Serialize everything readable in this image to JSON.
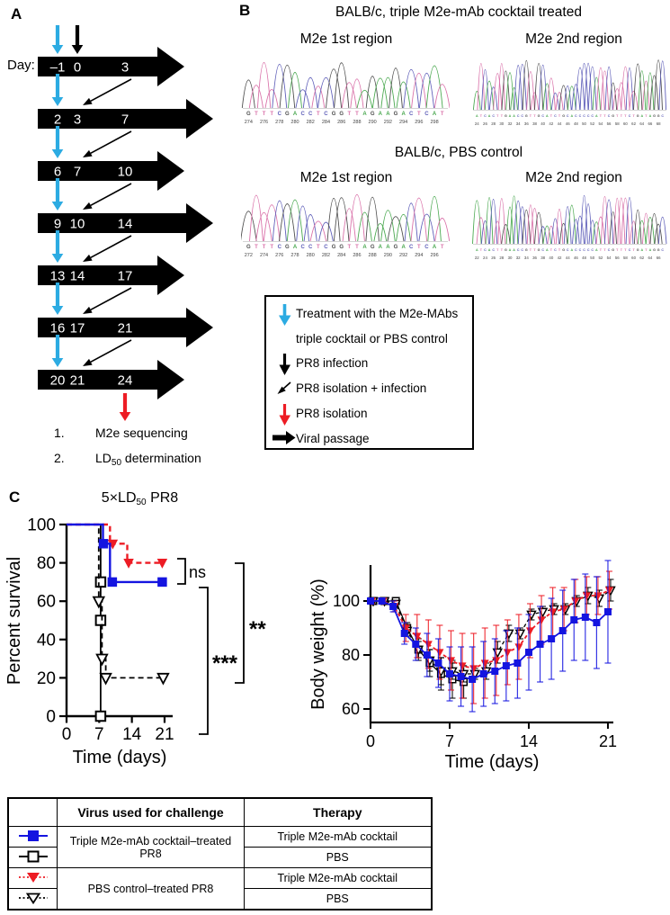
{
  "colors": {
    "cyan": "#2cabe2",
    "red": "#ed1c24",
    "blue": "#1414e0",
    "black": "#000000",
    "bases": {
      "A": "#49a84f",
      "T": "#d970a8",
      "C": "#5d5db8",
      "G": "#4d4d4d"
    }
  },
  "panelA": {
    "label": "A",
    "day_label": "Day:",
    "rows": [
      {
        "nums": [
          "–1",
          "0",
          "3"
        ],
        "treatment_arrow": true,
        "infection_arrow": true
      },
      {
        "nums": [
          "2",
          "3",
          "7"
        ],
        "treatment_arrow": true
      },
      {
        "nums": [
          "6",
          "7",
          "10"
        ],
        "treatment_arrow": true
      },
      {
        "nums": [
          "9",
          "10",
          "14"
        ],
        "treatment_arrow": true
      },
      {
        "nums": [
          "13",
          "14",
          "17"
        ],
        "treatment_arrow": true
      },
      {
        "nums": [
          "16",
          "17",
          "21"
        ],
        "treatment_arrow": true
      },
      {
        "nums": [
          "20",
          "21",
          "24"
        ],
        "treatment_arrow": true,
        "isolation_arrow": true
      }
    ],
    "footnotes": [
      {
        "num": "1.",
        "pre": "M2e sequencing",
        "sub": "",
        "post": ""
      },
      {
        "num": "2.",
        "pre": "LD",
        "sub": "50",
        "post": " determination"
      }
    ]
  },
  "panelB": {
    "label": "B",
    "groups": [
      {
        "title": "BALB/c, triple M2e-mAb cocktail treated",
        "charts": [
          {
            "subtitle": "M2e 1st region",
            "seq": "GTTTCGACCTCGGTTAGAAGACTCAT",
            "nums": [
              "274",
              "276",
              "278",
              "280",
              "282",
              "284",
              "286",
              "288",
              "290",
              "292",
              "294",
              "296",
              "298"
            ],
            "seed": 11
          },
          {
            "subtitle": "M2e 2nd region",
            "seq": "ATCACTTGAACCGTTGCATCTGCACCCCCATTCGTTTCTGATAGGC",
            "nums": [
              "24",
              "26",
              "28",
              "30",
              "32",
              "34",
              "36",
              "38",
              "40",
              "42",
              "44",
              "46",
              "48",
              "50",
              "52",
              "54",
              "56",
              "58",
              "60",
              "62",
              "64",
              "66",
              "68"
            ],
            "seed": 22
          }
        ]
      },
      {
        "title": "BALB/c, PBS control",
        "charts": [
          {
            "subtitle": "M2e 1st region",
            "seq": "GTTTCGACCTCGGTTAGAAGACTCAT",
            "nums": [
              "272",
              "274",
              "276",
              "278",
              "280",
              "282",
              "284",
              "286",
              "288",
              "290",
              "292",
              "294",
              "296"
            ],
            "seed": 33
          },
          {
            "subtitle": "M2e 2nd region",
            "seq": "ATCACTTGAACCGTTGCATCTGCACCCCCATTCGTTTCTGATAGGC",
            "nums": [
              "22",
              "24",
              "26",
              "28",
              "30",
              "32",
              "34",
              "36",
              "38",
              "40",
              "42",
              "44",
              "46",
              "48",
              "50",
              "52",
              "54",
              "56",
              "58",
              "60",
              "62",
              "64",
              "66"
            ],
            "seed": 44
          }
        ]
      }
    ],
    "legend": {
      "items": [
        {
          "icon": "treatment-arrow-icon",
          "lines": [
            "Treatment with the M2e-MAbs",
            "triple cocktail or PBS control"
          ]
        },
        {
          "icon": "infection-arrow-icon",
          "lines": [
            "PR8 infection"
          ]
        },
        {
          "icon": "isolation-infection-arrow-icon",
          "lines": [
            "PR8 isolation + infection"
          ]
        },
        {
          "icon": "isolation-arrow-icon",
          "lines": [
            "PR8 isolation"
          ]
        },
        {
          "icon": "viral-passage-arrow-icon",
          "lines": [
            "Viral passage"
          ]
        }
      ]
    }
  },
  "panelC": {
    "label": "C",
    "title": {
      "pre": "5×LD",
      "sub": "50",
      "post": " PR8"
    }
  },
  "chart_data": [
    {
      "type": "line",
      "name": "survival_curve",
      "title": "5×LD50 PR8",
      "xlabel": "Time (days)",
      "ylabel": "Percent survival",
      "xlim": [
        0,
        22
      ],
      "ylim": [
        0,
        100
      ],
      "xticks": [
        0,
        7,
        14,
        21
      ],
      "yticks": [
        0,
        20,
        40,
        60,
        80,
        100
      ],
      "series": [
        {
          "name": "Triple M2e-mAb cocktail–treated PR8 / Triple M2e-mAb cocktail therapy",
          "color": "#1414e0",
          "dash": "solid",
          "marker": "square",
          "fill": "filled",
          "steps": [
            [
              0,
              100
            ],
            [
              7.8,
              100
            ],
            [
              7.8,
              90
            ],
            [
              9.3,
              90
            ],
            [
              9.3,
              70
            ],
            [
              20.5,
              70
            ]
          ],
          "markers": [
            [
              7.9,
              90
            ],
            [
              9.8,
              70
            ],
            [
              20.5,
              70
            ]
          ]
        },
        {
          "name": "PBS control–treated PR8 / Triple M2e-mAb cocktail therapy",
          "color": "#ed1c24",
          "dash": "dashed",
          "marker": "triangle",
          "fill": "filled",
          "steps": [
            [
              0,
              100
            ],
            [
              9.3,
              100
            ],
            [
              9.3,
              90
            ],
            [
              13,
              90
            ],
            [
              13,
              80
            ],
            [
              20.5,
              80
            ]
          ],
          "markers": [
            [
              9.9,
              90
            ],
            [
              13.3,
              80
            ],
            [
              20.5,
              80
            ]
          ]
        },
        {
          "name": "Triple M2e-mAb cocktail–treated PR8 / PBS therapy",
          "color": "#000000",
          "dash": "solid",
          "marker": "square",
          "fill": "open",
          "steps": [
            [
              0,
              100
            ],
            [
              7.3,
              100
            ],
            [
              7.3,
              0
            ]
          ],
          "markers": [
            [
              7.3,
              70
            ],
            [
              7.3,
              50
            ],
            [
              7.3,
              0
            ]
          ]
        },
        {
          "name": "PBS control–treated PR8 / PBS therapy",
          "color": "#000000",
          "dash": "dashed",
          "marker": "triangle",
          "fill": "open",
          "steps": [
            [
              0,
              100
            ],
            [
              6.9,
              100
            ],
            [
              6.9,
              60
            ],
            [
              7.6,
              60
            ],
            [
              7.6,
              30
            ],
            [
              8.4,
              30
            ],
            [
              8.4,
              20
            ],
            [
              20.7,
              20
            ]
          ],
          "markers": [
            [
              6.9,
              60
            ],
            [
              7.6,
              30
            ],
            [
              8.4,
              20
            ],
            [
              20.7,
              20
            ]
          ]
        }
      ],
      "annotations": [
        {
          "label": "ns"
        },
        {
          "label": "***"
        },
        {
          "label": "**"
        }
      ]
    },
    {
      "type": "line",
      "name": "body_weight",
      "xlabel": "Time (days)",
      "ylabel": "Body weight (%)",
      "xlim": [
        0,
        21
      ],
      "ylim": [
        55,
        114
      ],
      "xticks": [
        0,
        7,
        14,
        21
      ],
      "yticks": [
        60,
        80,
        100
      ],
      "x": [
        0,
        1,
        2,
        3,
        4,
        5,
        6,
        7,
        8,
        9,
        10,
        11,
        12,
        13,
        14,
        15,
        16,
        17,
        18,
        19,
        20,
        21
      ],
      "series": [
        {
          "name": "Triple M2e-mAb cocktail–treated PR8 / Triple M2e-mAb cocktail therapy",
          "color": "#1414e0",
          "dash": "solid",
          "marker": "square",
          "fill": "filled",
          "values": [
            100,
            100,
            98,
            88,
            84,
            80,
            77,
            73,
            72,
            71,
            73,
            74,
            76,
            77,
            81,
            84,
            86,
            89,
            93,
            94,
            92,
            96
          ],
          "err": [
            1,
            1,
            2,
            4,
            6,
            8,
            9,
            10,
            11,
            12,
            12,
            12,
            13,
            13,
            14,
            14,
            15,
            15,
            15,
            16,
            17,
            19
          ]
        },
        {
          "name": "PBS control–treated PR8 / Triple M2e-mAb cocktail therapy",
          "color": "#ed1c24",
          "dash": "dashed",
          "marker": "triangle",
          "fill": "filled",
          "values": [
            100,
            100,
            98,
            90,
            87,
            84,
            81,
            78,
            76,
            75,
            77,
            78,
            81,
            83,
            89,
            93,
            96,
            97,
            100,
            102,
            102,
            104
          ],
          "err": [
            1,
            1,
            2,
            5,
            8,
            9,
            10,
            11,
            12,
            13,
            13,
            13,
            12,
            12,
            10,
            9,
            9,
            8,
            8,
            7,
            7,
            7
          ]
        },
        {
          "name": "Triple M2e-mAb cocktail–treated PR8 / PBS therapy",
          "color": "#000000",
          "dash": "solid",
          "marker": "square",
          "fill": "open",
          "values": [
            100,
            100,
            100,
            90,
            82,
            77,
            73,
            71,
            70
          ],
          "err": [
            1,
            1,
            1,
            2,
            4,
            5,
            6,
            7,
            6
          ]
        },
        {
          "name": "PBS control–treated PR8 / PBS therapy",
          "color": "#000000",
          "dash": "dashed",
          "marker": "triangle",
          "fill": "open",
          "values": [
            100,
            100,
            99,
            89,
            82,
            78,
            74,
            74,
            73,
            73,
            74,
            81,
            88,
            88,
            95,
            96,
            97,
            97,
            100,
            102,
            101,
            104
          ],
          "err": [
            1,
            1,
            1,
            2,
            3,
            4,
            5,
            3,
            3,
            2,
            3,
            4,
            3,
            2,
            2,
            2,
            2,
            2,
            2,
            3,
            3,
            4
          ]
        }
      ]
    }
  ],
  "table": {
    "headers": [
      "",
      "Virus used for challenge",
      "Therapy"
    ],
    "rows": [
      {
        "symbol": "blue-filled-square-solid-line",
        "virus": "Triple M2e-mAb cocktail–treated PR8",
        "therapy": "Triple M2e-mAb cocktail"
      },
      {
        "symbol": "open-square-solid-line",
        "virus": "Triple M2e-mAb cocktail–treated PR8",
        "therapy": "PBS"
      },
      {
        "symbol": "red-filled-triangle-dotted-line",
        "virus": "PBS control–treated PR8",
        "therapy": "Triple M2e-mAb cocktail"
      },
      {
        "symbol": "open-triangle-dotted-line",
        "virus": "PBS control–treated PR8",
        "therapy": "PBS"
      }
    ]
  }
}
